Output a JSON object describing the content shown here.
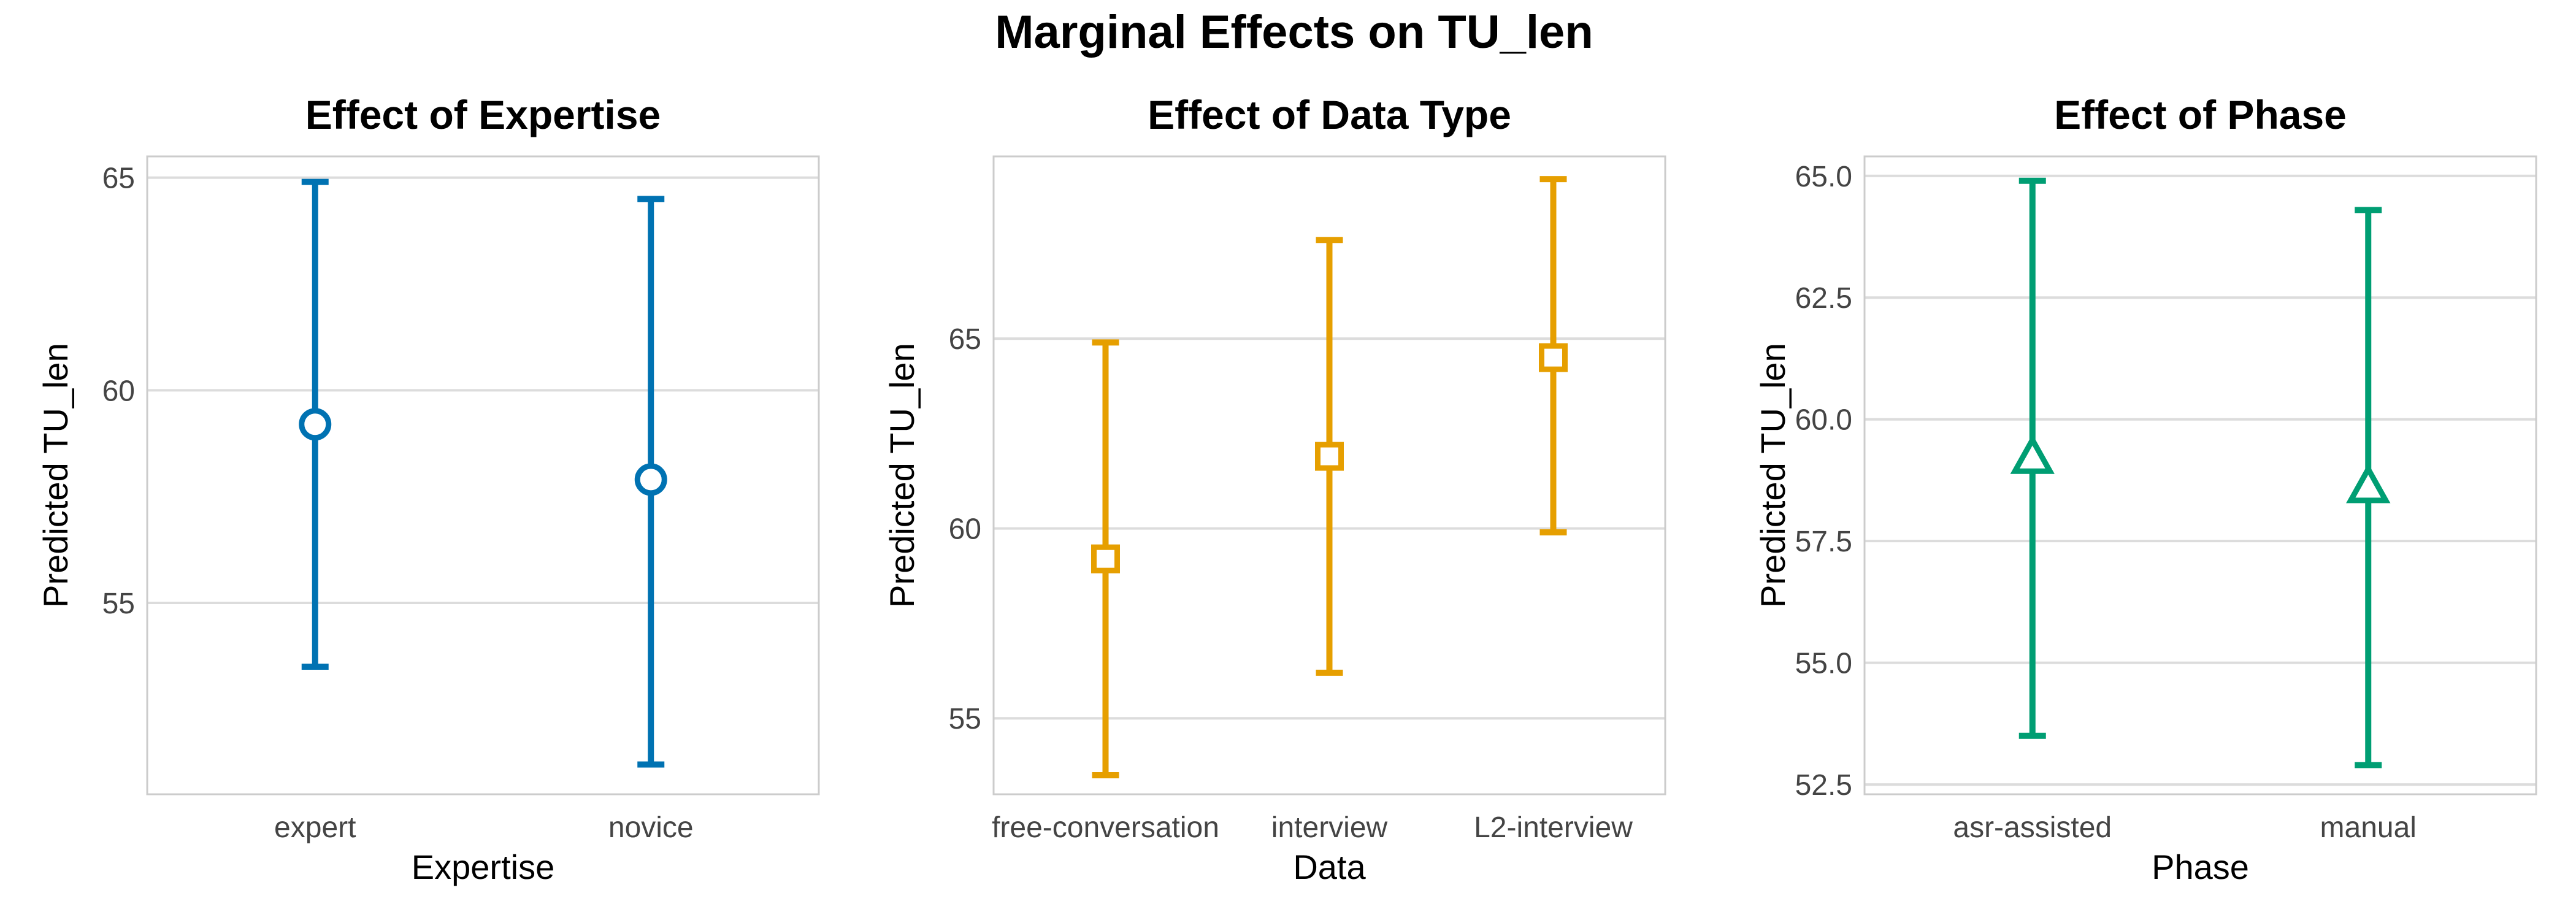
{
  "figure": {
    "title": "Marginal Effects on TU_len"
  },
  "chart_data": [
    {
      "type": "errorbar",
      "title": "Effect of Expertise",
      "xlabel": "Expertise",
      "ylabel": "Predicted TU_len",
      "categories": [
        "expert",
        "novice"
      ],
      "estimate": [
        59.2,
        57.9
      ],
      "ci_low": [
        53.5,
        51.2
      ],
      "ci_high": [
        64.9,
        64.5
      ],
      "ylim": [
        50.5,
        65.5
      ],
      "yticks": [
        55,
        60,
        65
      ],
      "ytick_labels": [
        "55",
        "60",
        "65"
      ],
      "color": "#0072B2",
      "marker": "circle",
      "grid": true
    },
    {
      "type": "errorbar",
      "title": "Effect of Data Type",
      "xlabel": "Data",
      "ylabel": "Predicted TU_len",
      "categories": [
        "free-conversation",
        "interview",
        "L2-interview"
      ],
      "estimate": [
        59.2,
        61.9,
        64.5
      ],
      "ci_low": [
        53.5,
        56.2,
        59.9
      ],
      "ci_high": [
        64.9,
        67.6,
        69.2
      ],
      "ylim": [
        53.0,
        69.8
      ],
      "yticks": [
        55,
        60,
        65
      ],
      "ytick_labels": [
        "55",
        "60",
        "65"
      ],
      "color": "#E69F00",
      "marker": "square",
      "grid": true
    },
    {
      "type": "errorbar",
      "title": "Effect of Phase",
      "xlabel": "Phase",
      "ylabel": "Predicted TU_len",
      "categories": [
        "asr-assisted",
        "manual"
      ],
      "estimate": [
        59.2,
        58.6
      ],
      "ci_low": [
        53.5,
        52.9
      ],
      "ci_high": [
        64.9,
        64.3
      ],
      "ylim": [
        52.3,
        65.4
      ],
      "yticks": [
        52.5,
        55.0,
        57.5,
        60.0,
        62.5,
        65.0
      ],
      "ytick_labels": [
        "52.5",
        "55.0",
        "57.5",
        "60.0",
        "62.5",
        "65.0"
      ],
      "color": "#009E73",
      "marker": "triangle",
      "grid": true
    }
  ]
}
